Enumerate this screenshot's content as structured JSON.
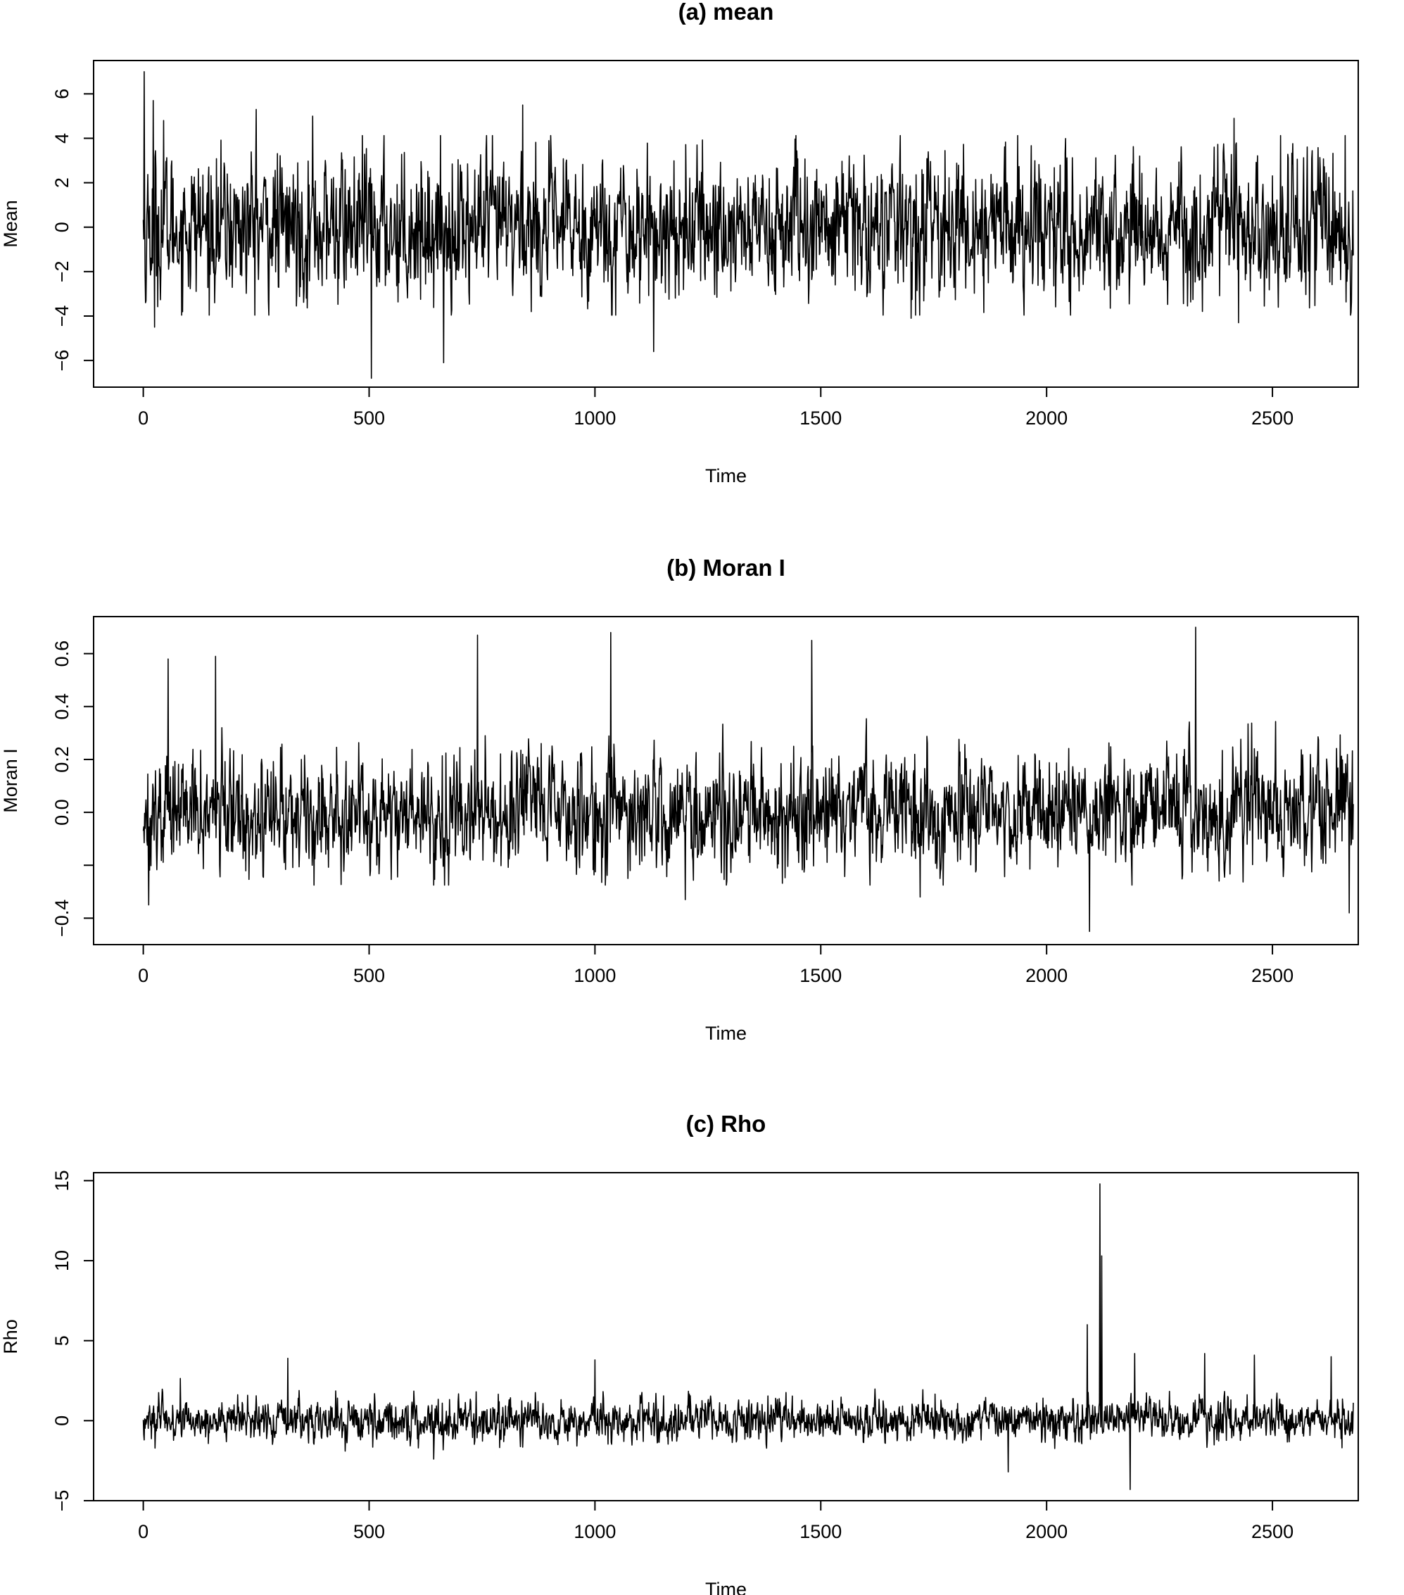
{
  "chart_data": [
    {
      "type": "line",
      "title": "(a) mean",
      "xlabel": "Time",
      "ylabel": "Mean",
      "xlim": [
        -110,
        2690
      ],
      "ylim": [
        -7.2,
        7.5
      ],
      "xticks": [
        0,
        500,
        1000,
        1500,
        2000,
        2500
      ],
      "xtick_labels": [
        "0",
        "500",
        "1000",
        "1500",
        "2000",
        "2500"
      ],
      "yticks": [
        -6,
        -4,
        -2,
        0,
        2,
        4,
        6
      ],
      "ytick_labels": [
        "−6",
        "−4",
        "−2",
        "0",
        "2",
        "4",
        "6"
      ],
      "grid": false,
      "color": "#000000",
      "n_points": 2680,
      "noise_sd": 1.5,
      "spikes": [
        {
          "x": 2,
          "y": 7.0
        },
        {
          "x": 5,
          "y": -3.4
        },
        {
          "x": 22,
          "y": 5.7
        },
        {
          "x": 25,
          "y": -4.5
        },
        {
          "x": 45,
          "y": 4.8
        },
        {
          "x": 250,
          "y": 5.3
        },
        {
          "x": 375,
          "y": 5.0
        },
        {
          "x": 505,
          "y": -6.8
        },
        {
          "x": 665,
          "y": -6.1
        },
        {
          "x": 840,
          "y": 5.5
        },
        {
          "x": 1130,
          "y": -5.6
        },
        {
          "x": 1700,
          "y": -4.1
        },
        {
          "x": 2415,
          "y": 4.9
        },
        {
          "x": 2425,
          "y": -4.3
        }
      ]
    },
    {
      "type": "line",
      "title": "(b) Moran I",
      "xlabel": "Time",
      "ylabel": "Moran I",
      "xlim": [
        -110,
        2690
      ],
      "ylim": [
        -0.5,
        0.74
      ],
      "xticks": [
        0,
        500,
        1000,
        1500,
        2000,
        2500
      ],
      "xtick_labels": [
        "0",
        "500",
        "1000",
        "1500",
        "2000",
        "2500"
      ],
      "yticks": [
        -0.4,
        -0.2,
        0.0,
        0.2,
        0.4,
        0.6
      ],
      "ytick_labels": [
        "−0.4",
        "",
        "0.0",
        "0.2",
        "0.4",
        "0.6"
      ],
      "grid": false,
      "color": "#000000",
      "n_points": 2680,
      "noise_sd": 0.1,
      "spikes": [
        {
          "x": 12,
          "y": -0.35
        },
        {
          "x": 55,
          "y": 0.58
        },
        {
          "x": 160,
          "y": 0.59
        },
        {
          "x": 740,
          "y": 0.67
        },
        {
          "x": 1035,
          "y": 0.68
        },
        {
          "x": 1200,
          "y": -0.33
        },
        {
          "x": 1480,
          "y": 0.65
        },
        {
          "x": 1720,
          "y": -0.32
        },
        {
          "x": 2095,
          "y": -0.45
        },
        {
          "x": 2330,
          "y": 0.7
        },
        {
          "x": 2670,
          "y": -0.38
        }
      ]
    },
    {
      "type": "line",
      "title": "(c) Rho",
      "xlabel": "Time",
      "ylabel": "Rho",
      "xlim": [
        -110,
        2690
      ],
      "ylim": [
        -5,
        15.5
      ],
      "xticks": [
        0,
        500,
        1000,
        1500,
        2000,
        2500
      ],
      "xtick_labels": [
        "0",
        "500",
        "1000",
        "1500",
        "2000",
        "2500"
      ],
      "yticks": [
        -5,
        0,
        5,
        10,
        15
      ],
      "ytick_labels": [
        "−5",
        "0",
        "5",
        "10",
        "15"
      ],
      "grid": false,
      "color": "#000000",
      "n_points": 2680,
      "noise_sd": 0.6,
      "spikes": [
        {
          "x": 320,
          "y": 3.9
        },
        {
          "x": 1000,
          "y": 3.8
        },
        {
          "x": 1915,
          "y": -3.2
        },
        {
          "x": 2090,
          "y": 6.0
        },
        {
          "x": 2118,
          "y": 14.8
        },
        {
          "x": 2122,
          "y": 10.3
        },
        {
          "x": 2185,
          "y": -4.3
        },
        {
          "x": 2195,
          "y": 4.2
        },
        {
          "x": 2350,
          "y": 4.2
        },
        {
          "x": 2460,
          "y": 4.1
        },
        {
          "x": 2630,
          "y": 4.0
        }
      ]
    }
  ]
}
